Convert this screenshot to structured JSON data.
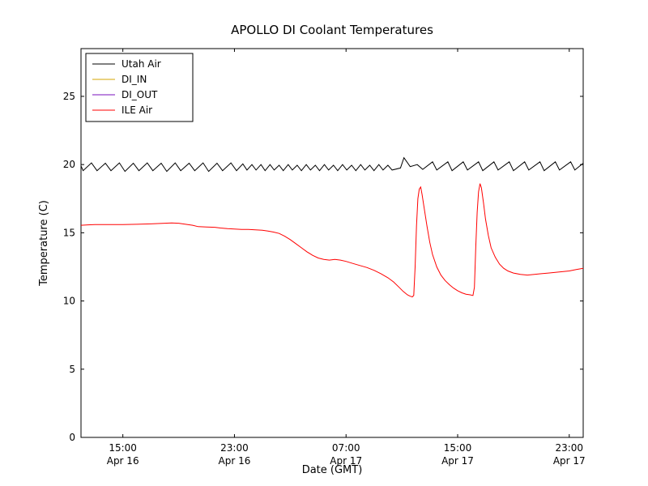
{
  "figure": {
    "background": "#ffffff"
  },
  "chart_data": {
    "type": "line",
    "title": "APOLLO DI Coolant Temperatures",
    "xlabel": "Date (GMT)",
    "ylabel": "Temperature (C)",
    "x_unit": "hours since Apr 16 12:00 GMT",
    "xlim": [
      0,
      36
    ],
    "ylim": [
      0,
      28.5
    ],
    "grid": false,
    "legend_position": "upper left",
    "y_ticks": [
      0,
      5,
      10,
      15,
      20,
      25
    ],
    "x_ticks": [
      {
        "x": 3,
        "time": "15:00",
        "date": "Apr 16"
      },
      {
        "x": 11,
        "time": "23:00",
        "date": "Apr 16"
      },
      {
        "x": 19,
        "time": "07:00",
        "date": "Apr 17"
      },
      {
        "x": 27,
        "time": "15:00",
        "date": "Apr 17"
      },
      {
        "x": 35,
        "time": "23:00",
        "date": "Apr 17"
      }
    ],
    "series": [
      {
        "name": "Utah Air",
        "color": "#000000",
        "points": [
          [
            0,
            19.9
          ],
          [
            0.15,
            19.55
          ],
          [
            0.75,
            20.12
          ],
          [
            1.15,
            19.55
          ],
          [
            1.75,
            20.1
          ],
          [
            2.15,
            19.55
          ],
          [
            2.75,
            20.12
          ],
          [
            3.15,
            19.5
          ],
          [
            3.75,
            20.1
          ],
          [
            4.15,
            19.55
          ],
          [
            4.75,
            20.12
          ],
          [
            5.15,
            19.55
          ],
          [
            5.75,
            20.1
          ],
          [
            6.15,
            19.5
          ],
          [
            6.75,
            20.12
          ],
          [
            7.15,
            19.55
          ],
          [
            7.75,
            20.1
          ],
          [
            8.15,
            19.55
          ],
          [
            8.75,
            20.12
          ],
          [
            9.15,
            19.5
          ],
          [
            9.75,
            20.1
          ],
          [
            10.15,
            19.55
          ],
          [
            10.75,
            20.12
          ],
          [
            11.15,
            19.55
          ],
          [
            11.6,
            20.05
          ],
          [
            11.9,
            19.6
          ],
          [
            12.25,
            20.0
          ],
          [
            12.55,
            19.6
          ],
          [
            12.9,
            20.0
          ],
          [
            13.2,
            19.55
          ],
          [
            13.55,
            20.0
          ],
          [
            13.85,
            19.6
          ],
          [
            14.2,
            19.95
          ],
          [
            14.5,
            19.55
          ],
          [
            14.85,
            20.0
          ],
          [
            15.15,
            19.6
          ],
          [
            15.5,
            19.95
          ],
          [
            15.8,
            19.55
          ],
          [
            16.15,
            20.0
          ],
          [
            16.45,
            19.6
          ],
          [
            16.8,
            19.95
          ],
          [
            17.1,
            19.55
          ],
          [
            17.45,
            20.0
          ],
          [
            17.75,
            19.6
          ],
          [
            18.1,
            19.95
          ],
          [
            18.4,
            19.55
          ],
          [
            18.75,
            20.0
          ],
          [
            19.05,
            19.6
          ],
          [
            19.4,
            19.95
          ],
          [
            19.7,
            19.55
          ],
          [
            20.05,
            20.0
          ],
          [
            20.35,
            19.6
          ],
          [
            20.7,
            19.95
          ],
          [
            21.0,
            19.55
          ],
          [
            21.35,
            20.0
          ],
          [
            21.65,
            19.6
          ],
          [
            22.0,
            19.95
          ],
          [
            22.3,
            19.6
          ],
          [
            22.9,
            19.75
          ],
          [
            23.15,
            20.5
          ],
          [
            23.6,
            19.85
          ],
          [
            24.1,
            20.0
          ],
          [
            24.5,
            19.65
          ],
          [
            25.2,
            20.2
          ],
          [
            25.5,
            19.6
          ],
          [
            26.3,
            20.2
          ],
          [
            26.6,
            19.55
          ],
          [
            27.4,
            20.2
          ],
          [
            27.7,
            19.6
          ],
          [
            28.5,
            20.2
          ],
          [
            28.8,
            19.55
          ],
          [
            29.6,
            20.2
          ],
          [
            29.9,
            19.6
          ],
          [
            30.7,
            20.2
          ],
          [
            31.0,
            19.55
          ],
          [
            31.8,
            20.2
          ],
          [
            32.1,
            19.6
          ],
          [
            32.9,
            20.2
          ],
          [
            33.2,
            19.55
          ],
          [
            34.0,
            20.2
          ],
          [
            34.3,
            19.6
          ],
          [
            35.1,
            20.2
          ],
          [
            35.4,
            19.6
          ],
          [
            36,
            20.1
          ]
        ]
      },
      {
        "name": "DI_IN",
        "color": "#d5a500",
        "points": []
      },
      {
        "name": "DI_OUT",
        "color": "#7a0fbe",
        "points": []
      },
      {
        "name": "ILE Air",
        "color": "#ff0000",
        "points": [
          [
            0,
            15.55
          ],
          [
            0.5,
            15.58
          ],
          [
            1,
            15.6
          ],
          [
            2,
            15.6
          ],
          [
            3,
            15.6
          ],
          [
            4,
            15.62
          ],
          [
            5,
            15.65
          ],
          [
            6,
            15.7
          ],
          [
            6.5,
            15.72
          ],
          [
            7,
            15.7
          ],
          [
            7.5,
            15.62
          ],
          [
            8,
            15.55
          ],
          [
            8.4,
            15.45
          ],
          [
            9,
            15.42
          ],
          [
            9.6,
            15.4
          ],
          [
            10,
            15.35
          ],
          [
            10.5,
            15.3
          ],
          [
            11,
            15.28
          ],
          [
            11.5,
            15.25
          ],
          [
            12,
            15.25
          ],
          [
            12.5,
            15.22
          ],
          [
            13,
            15.18
          ],
          [
            13.4,
            15.12
          ],
          [
            13.8,
            15.05
          ],
          [
            14.2,
            14.95
          ],
          [
            14.6,
            14.75
          ],
          [
            15,
            14.5
          ],
          [
            15.4,
            14.2
          ],
          [
            15.8,
            13.9
          ],
          [
            16.2,
            13.6
          ],
          [
            16.6,
            13.35
          ],
          [
            17,
            13.15
          ],
          [
            17.4,
            13.05
          ],
          [
            17.8,
            13.0
          ],
          [
            18.2,
            13.05
          ],
          [
            18.6,
            13.0
          ],
          [
            19,
            12.9
          ],
          [
            19.5,
            12.75
          ],
          [
            20,
            12.6
          ],
          [
            20.5,
            12.45
          ],
          [
            21,
            12.25
          ],
          [
            21.5,
            12.0
          ],
          [
            22,
            11.7
          ],
          [
            22.4,
            11.4
          ],
          [
            22.8,
            11.0
          ],
          [
            23.1,
            10.7
          ],
          [
            23.4,
            10.45
          ],
          [
            23.6,
            10.35
          ],
          [
            23.75,
            10.3
          ],
          [
            23.85,
            10.4
          ],
          [
            23.95,
            12.5
          ],
          [
            24.05,
            15.5
          ],
          [
            24.15,
            17.5
          ],
          [
            24.25,
            18.2
          ],
          [
            24.35,
            18.35
          ],
          [
            24.45,
            17.8
          ],
          [
            24.6,
            16.8
          ],
          [
            24.8,
            15.5
          ],
          [
            25.0,
            14.3
          ],
          [
            25.2,
            13.4
          ],
          [
            25.5,
            12.5
          ],
          [
            25.8,
            11.9
          ],
          [
            26.1,
            11.5
          ],
          [
            26.4,
            11.2
          ],
          [
            26.7,
            10.95
          ],
          [
            27.0,
            10.75
          ],
          [
            27.3,
            10.6
          ],
          [
            27.6,
            10.5
          ],
          [
            27.9,
            10.45
          ],
          [
            28.1,
            10.4
          ],
          [
            28.2,
            11.0
          ],
          [
            28.3,
            14.0
          ],
          [
            28.4,
            16.5
          ],
          [
            28.5,
            18.0
          ],
          [
            28.6,
            18.6
          ],
          [
            28.7,
            18.3
          ],
          [
            28.85,
            17.2
          ],
          [
            29.0,
            16.0
          ],
          [
            29.2,
            14.8
          ],
          [
            29.4,
            13.9
          ],
          [
            29.7,
            13.2
          ],
          [
            30.0,
            12.7
          ],
          [
            30.3,
            12.4
          ],
          [
            30.6,
            12.2
          ],
          [
            31.0,
            12.05
          ],
          [
            31.5,
            11.95
          ],
          [
            32,
            11.9
          ],
          [
            32.5,
            11.95
          ],
          [
            33,
            12.0
          ],
          [
            33.5,
            12.05
          ],
          [
            34,
            12.1
          ],
          [
            34.5,
            12.15
          ],
          [
            35,
            12.2
          ],
          [
            35.5,
            12.3
          ],
          [
            36,
            12.4
          ]
        ]
      }
    ]
  }
}
